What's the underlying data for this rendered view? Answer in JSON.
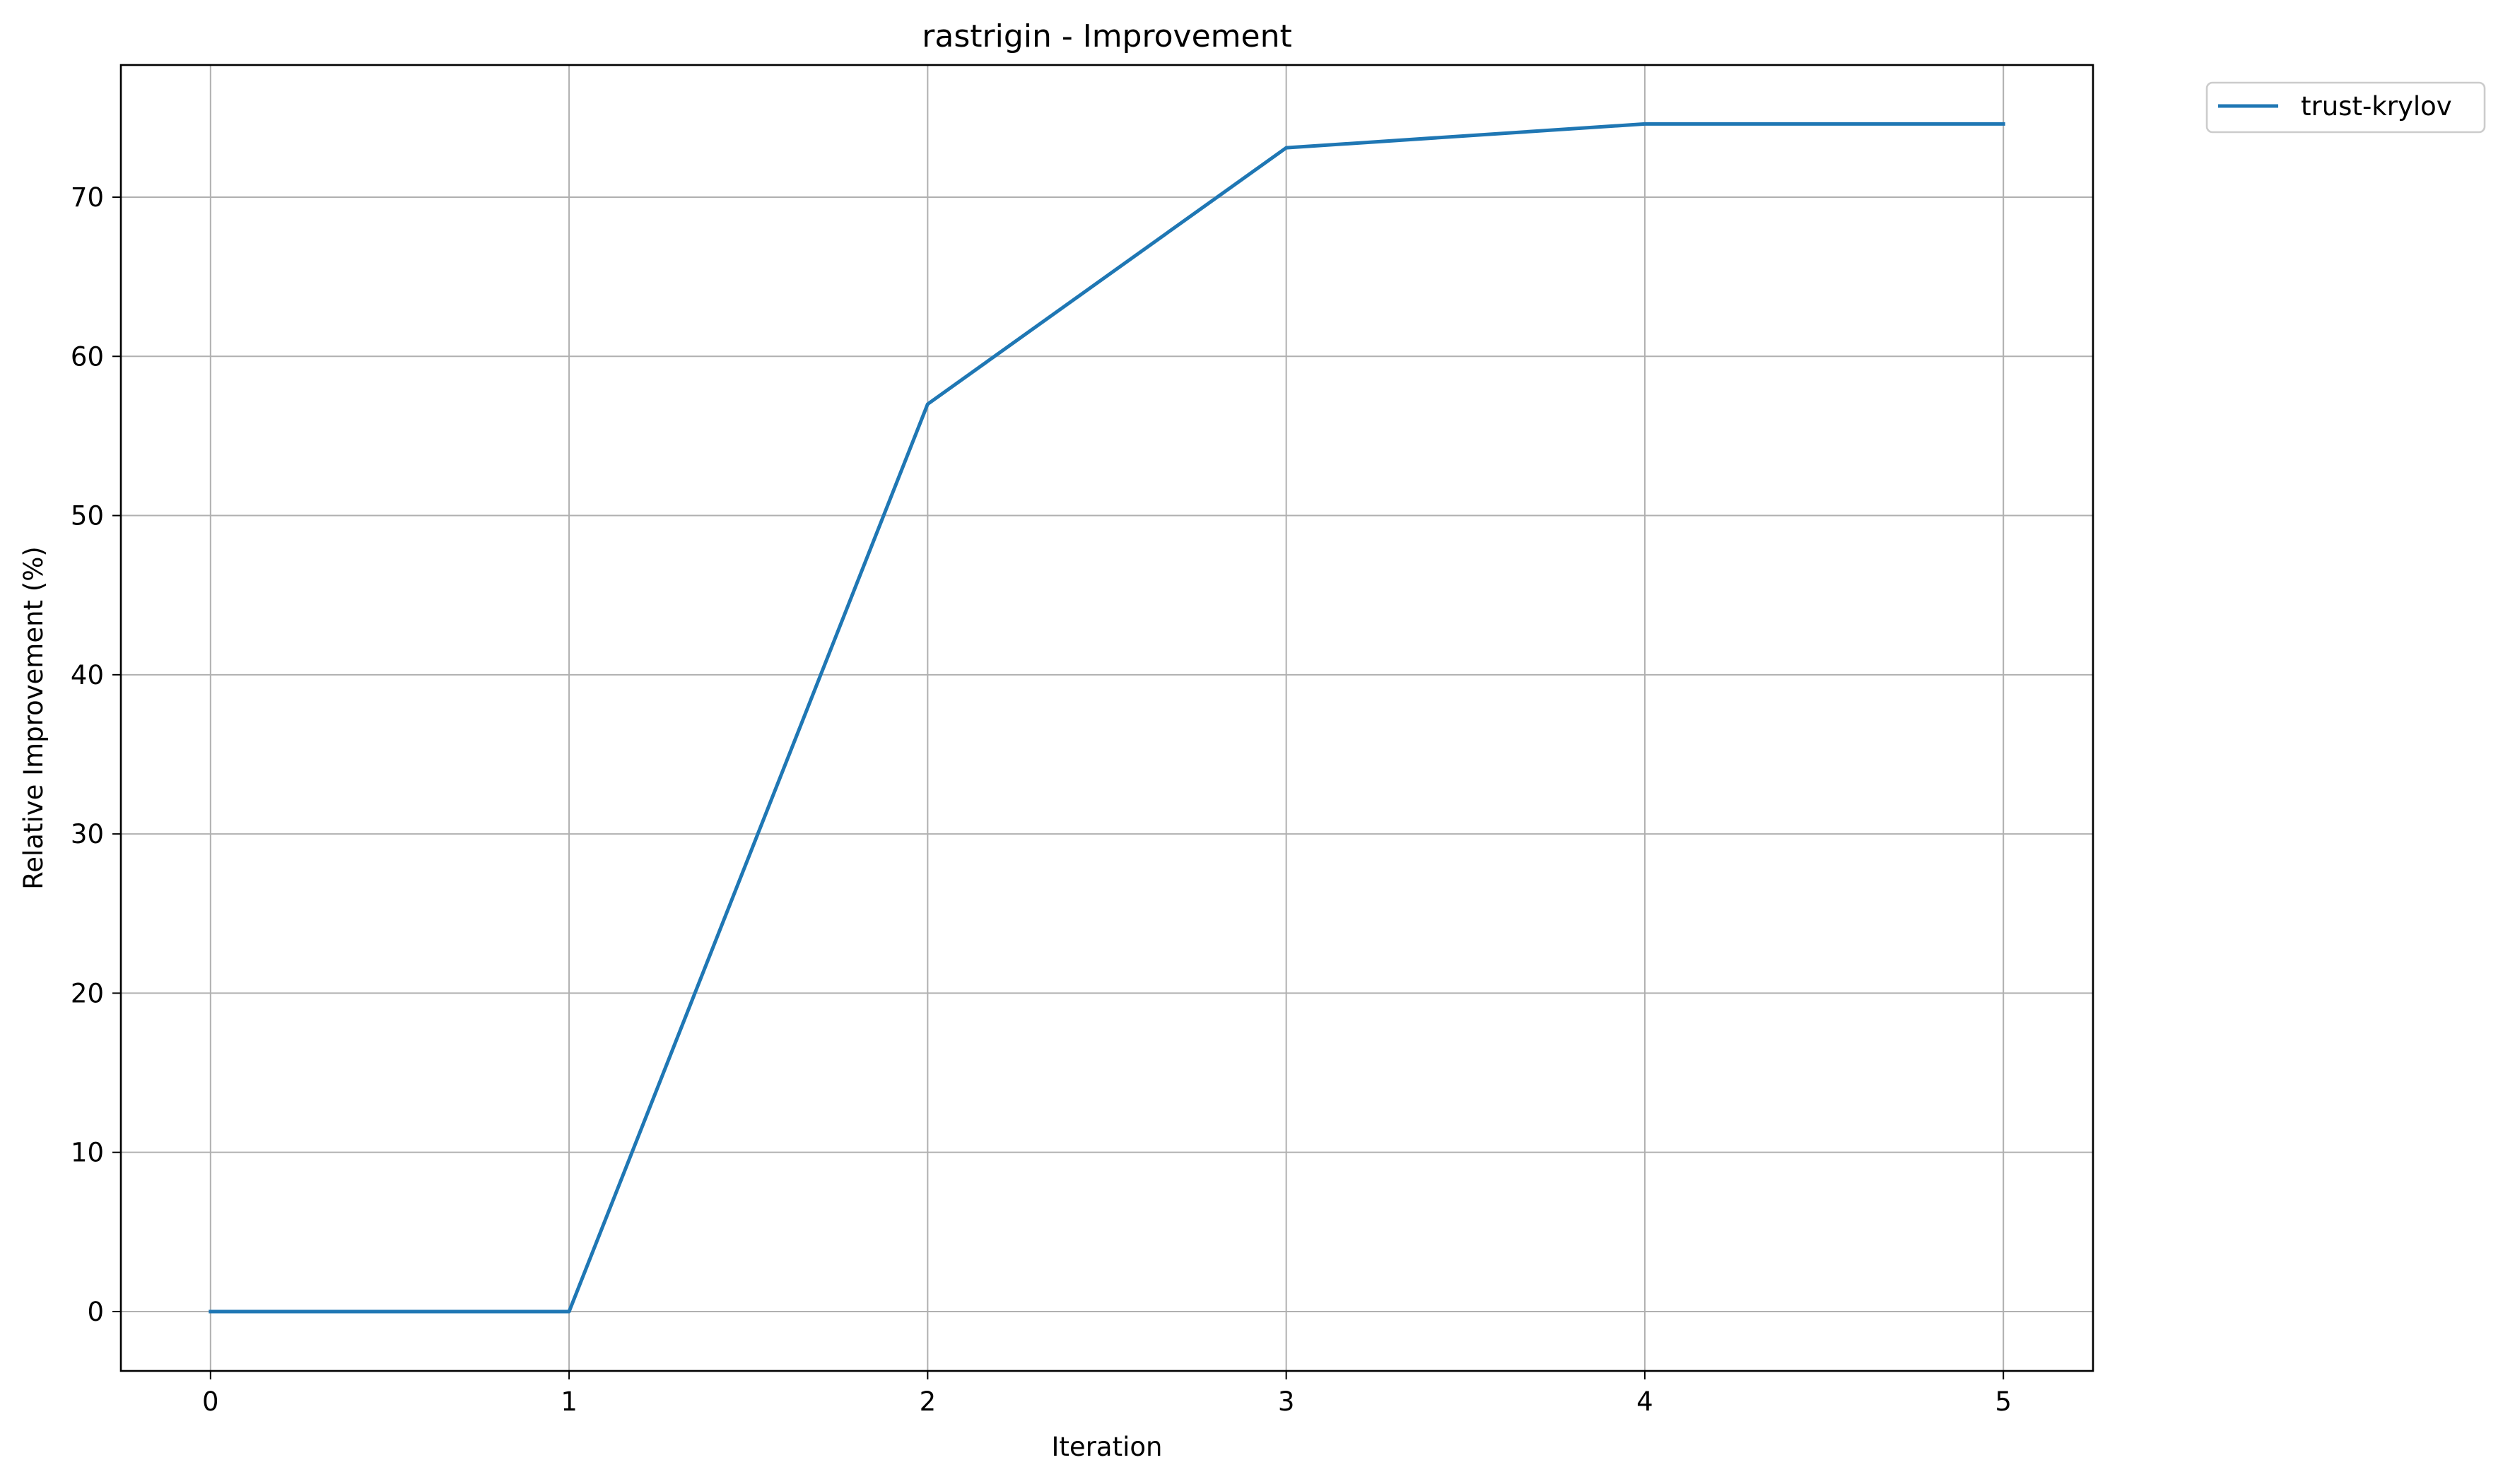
{
  "chart_data": {
    "type": "line",
    "title": "rastrigin - Improvement",
    "xlabel": "Iteration",
    "ylabel": "Relative Improvement (%)",
    "x": [
      0,
      1,
      2,
      3,
      4,
      5
    ],
    "series": [
      {
        "name": "trust-krylov",
        "color": "#1f77b4",
        "values": [
          0,
          0,
          57.0,
          73.1,
          74.6,
          74.6
        ]
      }
    ],
    "xlim": [
      -0.25,
      5.25
    ],
    "ylim": [
      -3.73,
      78.3
    ],
    "xticks": [
      0,
      1,
      2,
      3,
      4,
      5
    ],
    "yticks": [
      0,
      10,
      20,
      30,
      40,
      50,
      60,
      70
    ],
    "grid": true,
    "legend_position": "outside-top-right"
  }
}
